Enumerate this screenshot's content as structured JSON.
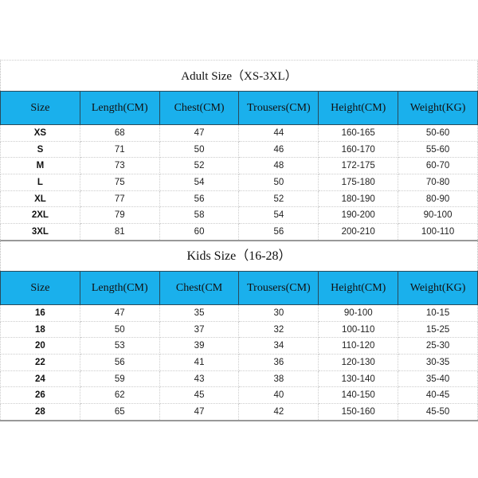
{
  "adult": {
    "title": "Adult Size（XS-3XL）",
    "headers": [
      "Size",
      "Length(CM)",
      "Chest(CM)",
      "Trousers(CM)",
      "Height(CM)",
      "Weight(KG)"
    ],
    "rows": [
      [
        "XS",
        "68",
        "47",
        "44",
        "160-165",
        "50-60"
      ],
      [
        "S",
        "71",
        "50",
        "46",
        "160-170",
        "55-60"
      ],
      [
        "M",
        "73",
        "52",
        "48",
        "172-175",
        "60-70"
      ],
      [
        "L",
        "75",
        "54",
        "50",
        "175-180",
        "70-80"
      ],
      [
        "XL",
        "77",
        "56",
        "52",
        "180-190",
        "80-90"
      ],
      [
        "2XL",
        "79",
        "58",
        "54",
        "190-200",
        "90-100"
      ],
      [
        "3XL",
        "81",
        "60",
        "56",
        "200-210",
        "100-110"
      ]
    ]
  },
  "kids": {
    "title": "Kids Size（16-28）",
    "headers": [
      "Size",
      "Length(CM)",
      "Chest(CM",
      "Trousers(CM)",
      "Height(CM)",
      "Weight(KG)"
    ],
    "rows": [
      [
        "16",
        "47",
        "35",
        "30",
        "90-100",
        "10-15"
      ],
      [
        "18",
        "50",
        "37",
        "32",
        "100-110",
        "15-25"
      ],
      [
        "20",
        "53",
        "39",
        "34",
        "110-120",
        "25-30"
      ],
      [
        "22",
        "56",
        "41",
        "36",
        "120-130",
        "30-35"
      ],
      [
        "24",
        "59",
        "43",
        "38",
        "130-140",
        "35-40"
      ],
      [
        "26",
        "62",
        "45",
        "40",
        "140-150",
        "40-45"
      ],
      [
        "28",
        "65",
        "47",
        "42",
        "150-160",
        "45-50"
      ]
    ]
  },
  "colors": {
    "header_bg": "#1ab0ec"
  }
}
